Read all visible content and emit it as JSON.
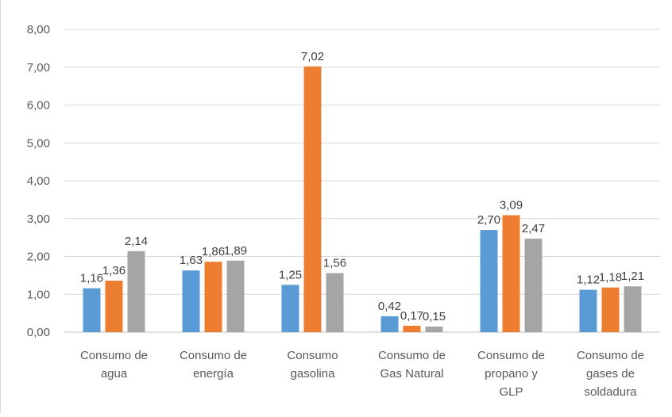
{
  "chart_data": {
    "type": "bar",
    "categories": [
      [
        "Consumo de",
        "agua"
      ],
      [
        "Consumo de",
        "energía"
      ],
      [
        "Consumo",
        "gasolina"
      ],
      [
        "Consumo de",
        "Gas Natural"
      ],
      [
        "Consumo de",
        "propano y",
        "GLP"
      ],
      [
        "Consumo de",
        "gases de",
        "soldadura"
      ]
    ],
    "series": [
      {
        "color": "#5b9bd5",
        "values": [
          1.16,
          1.63,
          1.25,
          0.42,
          2.7,
          1.12
        ],
        "labels": [
          "1,16",
          "1,63",
          "1,25",
          "0,42",
          "2,70",
          "1,12"
        ]
      },
      {
        "color": "#ed7d31",
        "values": [
          1.36,
          1.86,
          7.02,
          0.17,
          3.09,
          1.18
        ],
        "labels": [
          "1,36",
          "1,86",
          "7,02",
          "0,17",
          "3,09",
          "1,18"
        ]
      },
      {
        "color": "#a5a5a5",
        "values": [
          2.14,
          1.89,
          1.56,
          0.15,
          2.47,
          1.21
        ],
        "labels": [
          "2,14",
          "1,89",
          "1,56",
          "0,15",
          "2,47",
          "1,21"
        ]
      }
    ],
    "yticks": [
      "0,00",
      "1,00",
      "2,00",
      "3,00",
      "4,00",
      "5,00",
      "6,00",
      "7,00",
      "8,00"
    ],
    "ylim": [
      0,
      8
    ],
    "grid": true,
    "legend": "none"
  }
}
